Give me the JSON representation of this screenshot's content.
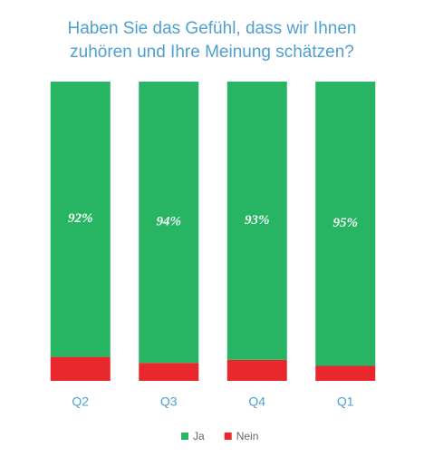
{
  "chart_data": {
    "type": "stacked_bar",
    "title": [
      "Haben Sie das Gefühl, dass wir Ihnen",
      "zuhören und Ihre Meinung schätzen?"
    ],
    "categories": [
      "Q2",
      "Q3",
      "Q4",
      "Q1"
    ],
    "series": [
      {
        "name": "Ja",
        "color": "#27b463",
        "values": [
          92,
          94,
          93,
          95
        ],
        "value_labels": [
          "92%",
          "94%",
          "93%",
          "95%"
        ]
      },
      {
        "name": "Nein",
        "color": "#e8282d",
        "values": [
          8,
          6,
          7,
          5
        ]
      }
    ],
    "legend": "bottom"
  }
}
